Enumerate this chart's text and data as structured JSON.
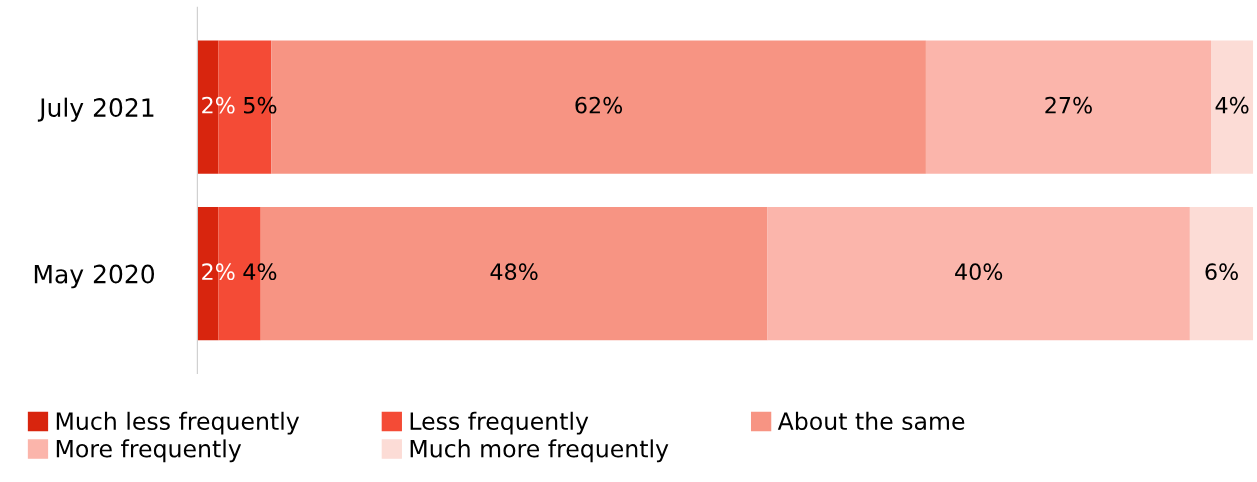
{
  "chart_data": {
    "type": "bar",
    "orientation": "horizontal",
    "stacked": true,
    "xlim": [
      0,
      100
    ],
    "tick_labels": "y",
    "legend": "bottom",
    "grid": false,
    "categories": [
      "July 2021",
      "May 2020"
    ],
    "series": [
      {
        "name": "Much less frequently",
        "color": "#d8250e",
        "values": [
          2,
          2
        ],
        "value_labels": [
          "2%",
          "2%"
        ]
      },
      {
        "name": "Less frequently",
        "color": "#f44b36",
        "values": [
          5,
          4
        ],
        "value_labels": [
          "5%",
          "4%"
        ]
      },
      {
        "name": "About the same",
        "color": "#f79483",
        "values": [
          62,
          48
        ],
        "value_labels": [
          "62%",
          "48%"
        ]
      },
      {
        "name": "More frequently",
        "color": "#fbb5ab",
        "values": [
          27,
          40
        ],
        "value_labels": [
          "27%",
          "40%"
        ]
      },
      {
        "name": "Much more frequently",
        "color": "#fcdcd6",
        "values": [
          4,
          6
        ],
        "value_labels": [
          "4%",
          "6%"
        ]
      }
    ]
  }
}
